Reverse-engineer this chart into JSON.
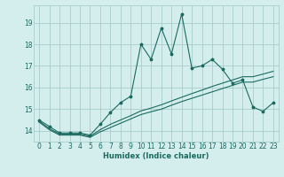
{
  "xlabel": "Humidex (Indice chaleur)",
  "bg_color": "#d4eeee",
  "grid_color": "#aacccc",
  "line_color": "#1a6a60",
  "xlim": [
    -0.5,
    23.5
  ],
  "ylim": [
    13.5,
    19.8
  ],
  "xticks": [
    0,
    1,
    2,
    3,
    4,
    5,
    6,
    7,
    8,
    9,
    10,
    11,
    12,
    13,
    14,
    15,
    16,
    17,
    18,
    19,
    20,
    21,
    22,
    23
  ],
  "yticks": [
    14,
    15,
    16,
    17,
    18,
    19
  ],
  "s1_x": [
    0,
    1,
    2,
    3,
    4,
    5,
    6,
    7,
    8,
    9,
    10,
    11,
    12,
    13,
    14,
    15,
    16,
    17,
    18,
    19,
    20,
    21,
    22,
    23
  ],
  "s1_y": [
    14.5,
    14.2,
    13.9,
    13.9,
    13.9,
    13.8,
    14.3,
    14.85,
    15.3,
    15.6,
    18.0,
    17.3,
    18.75,
    17.55,
    19.4,
    16.9,
    17.0,
    17.3,
    16.85,
    16.2,
    16.35,
    15.1,
    14.9,
    15.3
  ],
  "s2_x": [
    0,
    1,
    2,
    3,
    4,
    5,
    6,
    7,
    8,
    9,
    10,
    11,
    12,
    13,
    14,
    15,
    16,
    17,
    18,
    19,
    20,
    21,
    22,
    23
  ],
  "s2_y": [
    14.45,
    14.1,
    13.85,
    13.85,
    13.85,
    13.75,
    14.05,
    14.3,
    14.5,
    14.7,
    14.92,
    15.05,
    15.2,
    15.38,
    15.55,
    15.72,
    15.88,
    16.05,
    16.2,
    16.35,
    16.5,
    16.5,
    16.62,
    16.75
  ],
  "s3_x": [
    0,
    1,
    2,
    3,
    4,
    5,
    6,
    7,
    8,
    9,
    10,
    11,
    12,
    13,
    14,
    15,
    16,
    17,
    18,
    19,
    20,
    21,
    22,
    23
  ],
  "s3_y": [
    14.4,
    14.05,
    13.8,
    13.8,
    13.8,
    13.7,
    13.95,
    14.15,
    14.35,
    14.55,
    14.75,
    14.88,
    15.0,
    15.18,
    15.35,
    15.5,
    15.65,
    15.8,
    15.95,
    16.1,
    16.25,
    16.25,
    16.38,
    16.5
  ]
}
